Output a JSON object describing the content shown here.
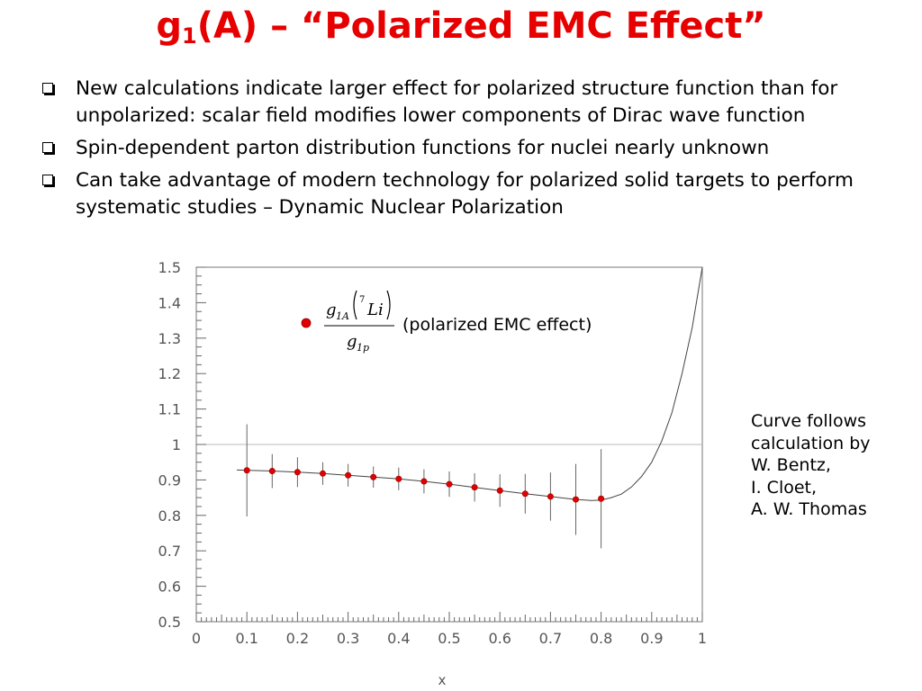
{
  "title": {
    "main": "g",
    "sub": "1",
    "rest": "(A) – “Polarized EMC Effect”"
  },
  "bullets": [
    "New calculations indicate larger effect for polarized structure function than for unpolarized: scalar field modifies lower components of Dirac wave function",
    "Spin-dependent parton distribution functions for nuclei nearly unknown",
    "Can take advantage of modern technology for polarized solid targets to perform systematic studies – Dynamic Nuclear Polarization"
  ],
  "side_note": [
    "Curve follows",
    "calculation by",
    "W. Bentz,",
    "I. Cloet,",
    "A. W. Thomas"
  ],
  "colors": {
    "title": "#e60000",
    "marker": "#e00000",
    "axis": "#555555"
  },
  "chart_data": {
    "type": "scatter",
    "xlabel": "x",
    "ylabel": "",
    "xlim": [
      0,
      1
    ],
    "ylim": [
      0.5,
      1.5
    ],
    "x_ticks": [
      "0",
      "0.1",
      "0.2",
      "0.3",
      "0.4",
      "0.5",
      "0.6",
      "0.7",
      "0.8",
      "0.9",
      "1"
    ],
    "y_ticks": [
      "0.5",
      "0.6",
      "0.7",
      "0.8",
      "0.9",
      "1",
      "1.1",
      "1.2",
      "1.3",
      "1.4",
      "1.5"
    ],
    "reference_line": 1,
    "legend": {
      "formula": {
        "num_g": "g",
        "num_sub": "1A",
        "num_sup": "7",
        "num_arg": "Li",
        "den_g": "g",
        "den_sub": "1p"
      },
      "text": "(polarized EMC effect)"
    },
    "series": [
      {
        "x": [
          0.1,
          0.15,
          0.2,
          0.25,
          0.3,
          0.35,
          0.4,
          0.45,
          0.5,
          0.55,
          0.6,
          0.65,
          0.7,
          0.75,
          0.8
        ],
        "y": [
          0.927,
          0.925,
          0.922,
          0.918,
          0.913,
          0.908,
          0.903,
          0.896,
          0.888,
          0.879,
          0.87,
          0.861,
          0.853,
          0.845,
          0.847
        ],
        "err": [
          0.13,
          0.048,
          0.042,
          0.032,
          0.032,
          0.03,
          0.032,
          0.034,
          0.036,
          0.04,
          0.046,
          0.056,
          0.068,
          0.1,
          0.14
        ]
      }
    ],
    "curve": {
      "x": [
        0.08,
        0.15,
        0.2,
        0.25,
        0.3,
        0.35,
        0.4,
        0.45,
        0.5,
        0.55,
        0.6,
        0.65,
        0.7,
        0.75,
        0.78,
        0.8,
        0.82,
        0.84,
        0.86,
        0.88,
        0.9,
        0.92,
        0.94,
        0.96,
        0.98,
        1.0
      ],
      "y": [
        0.928,
        0.925,
        0.922,
        0.918,
        0.913,
        0.908,
        0.903,
        0.896,
        0.888,
        0.879,
        0.87,
        0.861,
        0.853,
        0.845,
        0.842,
        0.843,
        0.85,
        0.86,
        0.88,
        0.91,
        0.95,
        1.01,
        1.09,
        1.2,
        1.33,
        1.5
      ]
    }
  }
}
